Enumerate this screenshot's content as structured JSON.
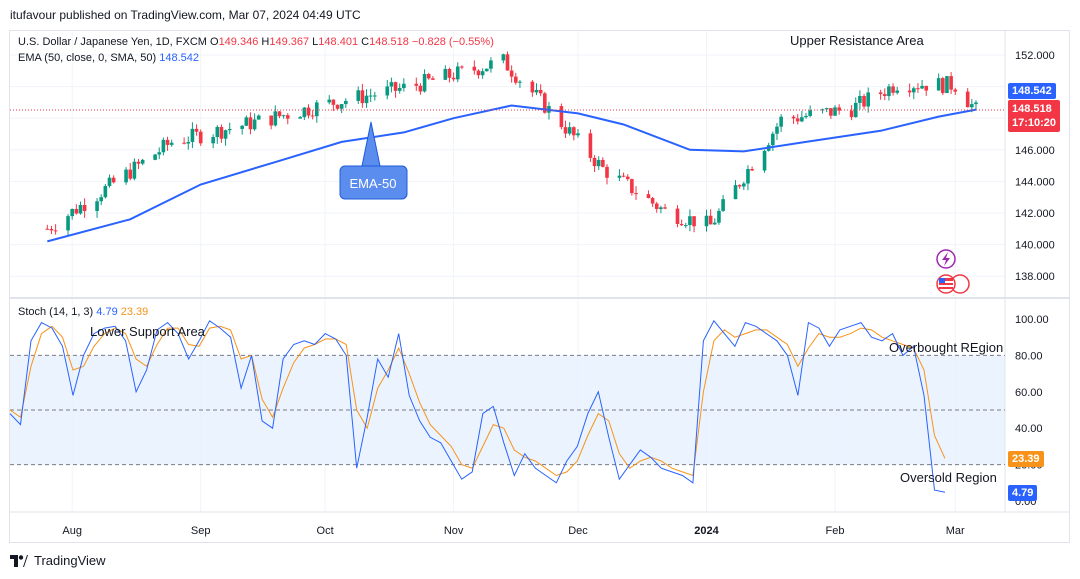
{
  "header": {
    "publisher_line": "itufavour published on TradingView.com, Mar 07, 2024 04:49 UTC"
  },
  "brand": {
    "name": "TradingView",
    "icon": "tradingview-logo-icon"
  },
  "legend": {
    "symbol": "U.S. Dollar / Japanese Yen, 1D, FXCM",
    "o_label": "O",
    "o_value": "149.346",
    "h_label": "H",
    "h_value": "149.367",
    "l_label": "L",
    "l_value": "148.401",
    "c_label": "C",
    "c_value": "148.518",
    "change": "−0.828 (−0.55%)",
    "ema_label": "EMA (50, close, 0, SMA, 50)",
    "ema_value": "148.542",
    "stoch_label": "Stoch (14, 1, 3)",
    "stoch_k": "4.79",
    "stoch_d": "23.39"
  },
  "price_tags": {
    "ema": "148.542",
    "close": "148.518",
    "countdown": "17:10:20",
    "stoch_d": "23.39",
    "stoch_k": "4.79"
  },
  "annotations": {
    "upper_resistance": "Upper Resistance Area",
    "lower_support": "Lower Support Area",
    "ema_callout": "EMA-50",
    "overbought": "Overbought REgion",
    "oversold": "Oversold Region"
  },
  "icons": {
    "lightning": "lightning-icon",
    "flags": "usd-jpy-flags-icon"
  },
  "colors": {
    "up": "#089981",
    "down": "#f23645",
    "ema": "#2962ff",
    "stoch_k": "#2962ff",
    "stoch_d": "#f7931a",
    "band": "#e3effd"
  },
  "chart_data": [
    {
      "type": "candlestick",
      "title": "U.S. Dollar / Japanese Yen, 1D, FXCM",
      "x_tick_labels": [
        "Aug",
        "Sep",
        "Oct",
        "Nov",
        "Dec",
        "2024",
        "Feb",
        "Mar"
      ],
      "y_tick_labels": [
        "138.000",
        "140.000",
        "142.000",
        "144.000",
        "146.000",
        "148.000",
        "150.000",
        "152.000"
      ],
      "ylim": [
        137.0,
        153.2
      ],
      "series": [
        {
          "name": "EMA (50, close, 0, SMA, 50)",
          "type": "line",
          "x": [
            "2023-07-26",
            "2023-08-15",
            "2023-09-01",
            "2023-09-20",
            "2023-10-05",
            "2023-10-20",
            "2023-11-01",
            "2023-11-15",
            "2023-12-01",
            "2023-12-12",
            "2023-12-28",
            "2024-01-10",
            "2024-01-25",
            "2024-02-12",
            "2024-02-26",
            "2024-03-06"
          ],
          "values": [
            140.2,
            141.6,
            143.8,
            145.3,
            146.5,
            147.1,
            148.0,
            148.8,
            148.3,
            147.6,
            146.0,
            145.9,
            146.5,
            147.2,
            148.1,
            148.54
          ]
        }
      ],
      "ohlc_key_closes": {
        "x": [
          "2023-07-26",
          "2023-08-10",
          "2023-08-25",
          "2023-09-15",
          "2023-10-03",
          "2023-10-20",
          "2023-11-13",
          "2023-11-28",
          "2023-12-07",
          "2023-12-22",
          "2024-01-02",
          "2024-01-19",
          "2024-02-05",
          "2024-02-16",
          "2024-03-01",
          "2024-03-06"
        ],
        "close": [
          141.0,
          143.7,
          146.5,
          147.8,
          149.0,
          149.9,
          151.6,
          147.4,
          144.8,
          142.1,
          141.2,
          147.9,
          148.6,
          150.2,
          150.1,
          148.5
        ]
      },
      "last": {
        "open": 149.346,
        "high": 149.367,
        "low": 148.401,
        "close": 148.518
      },
      "annotations": [
        "Upper Resistance Area",
        "EMA-50"
      ]
    },
    {
      "type": "line",
      "title": "Stoch (14, 1, 3)",
      "x_tick_labels": [
        "Aug",
        "Sep",
        "Oct",
        "Nov",
        "Dec",
        "2024",
        "Feb",
        "Mar"
      ],
      "y_tick_labels": [
        "0.00",
        "20.00",
        "40.00",
        "60.00",
        "80.00",
        "100.00"
      ],
      "ylim": [
        0,
        100
      ],
      "levels": [
        20,
        50,
        80
      ],
      "series": [
        {
          "name": "%K",
          "values": [
            48,
            42,
            88,
            98,
            95,
            85,
            58,
            80,
            92,
            95,
            96,
            88,
            60,
            72,
            94,
            98,
            92,
            78,
            88,
            99,
            95,
            90,
            62,
            80,
            44,
            40,
            78,
            86,
            88,
            86,
            92,
            89,
            80,
            18,
            46,
            78,
            68,
            92,
            58,
            44,
            35,
            32,
            22,
            12,
            16,
            48,
            52,
            32,
            14,
            26,
            18,
            14,
            10,
            22,
            30,
            48,
            60,
            35,
            12,
            20,
            28,
            24,
            18,
            16,
            14,
            10,
            88,
            99,
            92,
            85,
            98,
            96,
            92,
            88,
            80,
            58,
            98,
            95,
            85,
            94,
            96,
            98,
            90,
            88,
            92,
            80,
            85,
            58,
            6,
            4.79
          ]
        },
        {
          "name": "%D",
          "values": [
            50,
            46,
            74,
            92,
            96,
            90,
            72,
            74,
            85,
            92,
            95,
            92,
            78,
            74,
            86,
            95,
            95,
            86,
            85,
            95,
            96,
            94,
            78,
            80,
            56,
            46,
            62,
            76,
            84,
            86,
            89,
            89,
            86,
            50,
            40,
            62,
            72,
            84,
            70,
            54,
            42,
            36,
            30,
            20,
            18,
            30,
            42,
            40,
            28,
            24,
            22,
            18,
            14,
            16,
            22,
            36,
            48,
            44,
            26,
            18,
            22,
            24,
            22,
            18,
            16,
            14,
            60,
            88,
            94,
            90,
            92,
            94,
            94,
            90,
            86,
            74,
            84,
            92,
            90,
            90,
            92,
            95,
            94,
            90,
            88,
            86,
            84,
            72,
            36,
            23.39
          ]
        }
      ],
      "annotations": [
        "Lower Support Area",
        "Overbought REgion",
        "Oversold Region"
      ]
    }
  ]
}
